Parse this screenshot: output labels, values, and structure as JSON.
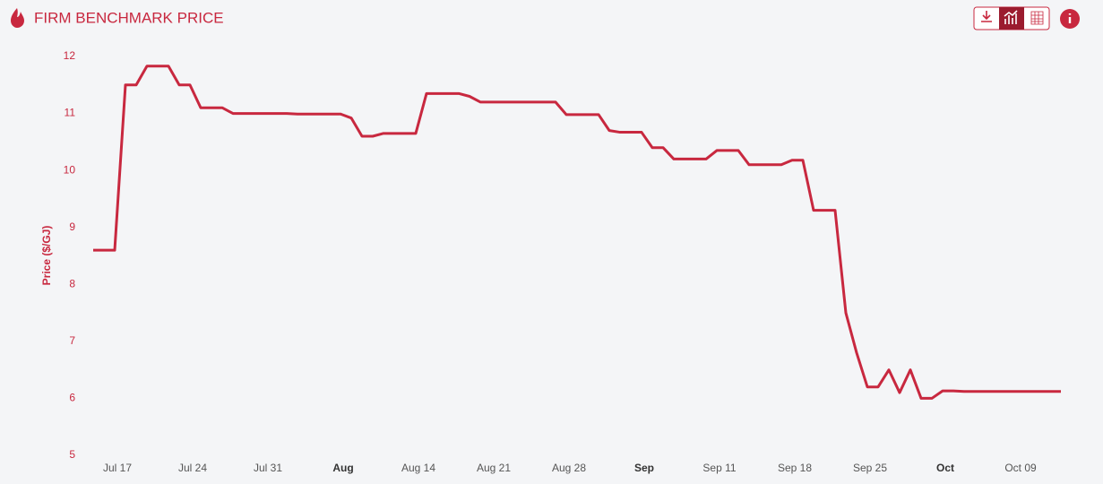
{
  "chart_data": {
    "type": "line",
    "title": "FIRM BENCHMARK PRICE",
    "y_label": "Price ($/GJ)",
    "color": "#c8283f",
    "categories": [
      null,
      null,
      "Jul 17",
      null,
      null,
      null,
      null,
      null,
      null,
      "Jul 24",
      null,
      null,
      null,
      null,
      null,
      null,
      "Jul 31",
      null,
      null,
      null,
      null,
      null,
      null,
      "Aug",
      null,
      null,
      null,
      null,
      null,
      null,
      "Aug 14",
      null,
      null,
      null,
      null,
      null,
      null,
      "Aug 21",
      null,
      null,
      null,
      null,
      null,
      null,
      "Aug 28",
      null,
      null,
      null,
      null,
      null,
      null,
      "Sep",
      null,
      null,
      null,
      null,
      null,
      null,
      "Sep 11",
      null,
      null,
      null,
      null,
      null,
      null,
      "Sep 18",
      null,
      null,
      null,
      null,
      null,
      null,
      "Sep 25",
      null,
      null,
      null,
      null,
      null,
      null,
      "Oct",
      null,
      null,
      null,
      null,
      null,
      null,
      "Oct 09",
      null,
      null,
      null,
      null
    ],
    "values": [
      8.6,
      8.6,
      8.6,
      11.5,
      11.5,
      11.83,
      11.83,
      11.83,
      11.5,
      11.5,
      11.1,
      11.1,
      11.1,
      11.0,
      11.0,
      11.0,
      11.0,
      11.0,
      11.0,
      10.99,
      10.99,
      10.99,
      10.99,
      10.99,
      10.92,
      10.6,
      10.6,
      10.65,
      10.65,
      10.65,
      10.65,
      11.35,
      11.35,
      11.35,
      11.35,
      11.3,
      11.2,
      11.2,
      11.2,
      11.2,
      11.2,
      11.2,
      11.2,
      11.2,
      10.98,
      10.98,
      10.98,
      10.98,
      10.7,
      10.67,
      10.67,
      10.67,
      10.4,
      10.4,
      10.2,
      10.2,
      10.2,
      10.2,
      10.35,
      10.35,
      10.35,
      10.1,
      10.1,
      10.1,
      10.1,
      10.18,
      10.18,
      9.3,
      9.3,
      9.3,
      7.5,
      6.8,
      6.2,
      6.2,
      6.5,
      6.1,
      6.5,
      6.0,
      6.0,
      6.13,
      6.13,
      6.12,
      6.12,
      6.12,
      6.12,
      6.12,
      6.12,
      6.12,
      6.12,
      6.12,
      6.12
    ],
    "ylim": [
      5,
      12
    ],
    "yticks": [
      5,
      6,
      7,
      8,
      9,
      10,
      11,
      12
    ],
    "grid": false
  }
}
